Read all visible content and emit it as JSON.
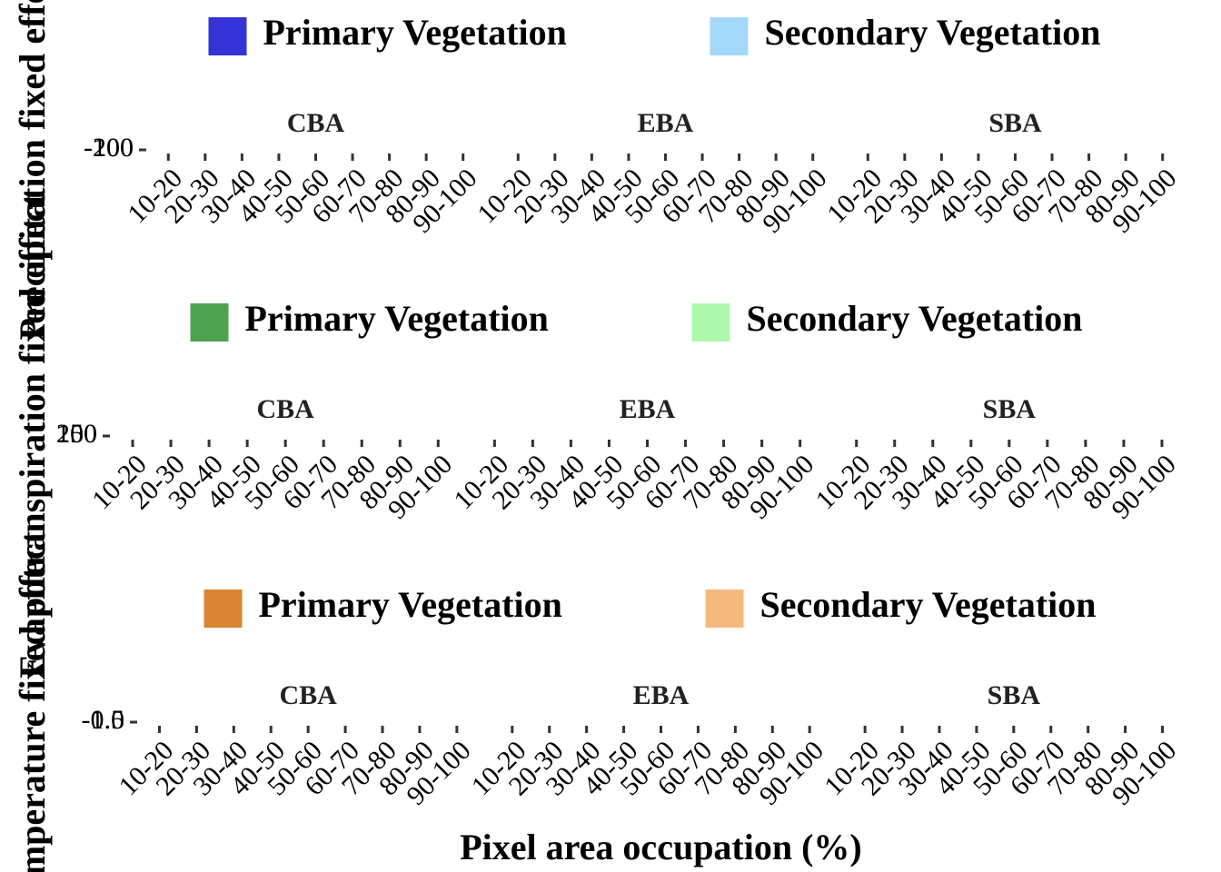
{
  "chart_data": [
    {
      "type": "bar",
      "ylabel": "Precipitation fixed effect",
      "facets": [
        "CBA",
        "EBA",
        "SBA"
      ],
      "categories": [
        "10-20",
        "20-30",
        "30-40",
        "40-50",
        "50-60",
        "60-70",
        "70-80",
        "80-90",
        "90-100"
      ],
      "series": [
        {
          "name": "Primary Vegetation",
          "color": "#3333d6"
        },
        {
          "name": "Secondary Vegetation",
          "color": "#a3d8fa"
        }
      ],
      "ylim": [
        -100,
        200
      ],
      "yticks": [
        -100,
        200
      ]
    },
    {
      "type": "bar",
      "ylabel": "Evapotranspiration fixed effect",
      "facets": [
        "CBA",
        "EBA",
        "SBA"
      ],
      "categories": [
        "10-20",
        "20-30",
        "30-40",
        "40-50",
        "50-60",
        "60-70",
        "70-80",
        "80-90",
        "90-100"
      ],
      "series": [
        {
          "name": "Primary Vegetation",
          "color": "#4fa34f"
        },
        {
          "name": "Secondary Vegetation",
          "color": "#adfaad"
        }
      ],
      "ylim": [
        150,
        200
      ],
      "yticks": [
        150,
        200
      ]
    },
    {
      "type": "bar",
      "ylabel": "Temperature fixed effect",
      "xlabel": "Pixel area occupation (%)",
      "facets": [
        "CBA",
        "EBA",
        "SBA"
      ],
      "categories": [
        "10-20",
        "20-30",
        "30-40",
        "40-50",
        "50-60",
        "60-70",
        "70-80",
        "80-90",
        "90-100"
      ],
      "series": [
        {
          "name": "Primary Vegetation",
          "color": "#d98533"
        },
        {
          "name": "Secondary Vegetation",
          "color": "#f5b87d"
        }
      ],
      "ylim": [
        -0.5,
        1
      ],
      "yticks": [
        -0.5,
        {
          "value": 1,
          "label": "1.0"
        }
      ]
    }
  ]
}
